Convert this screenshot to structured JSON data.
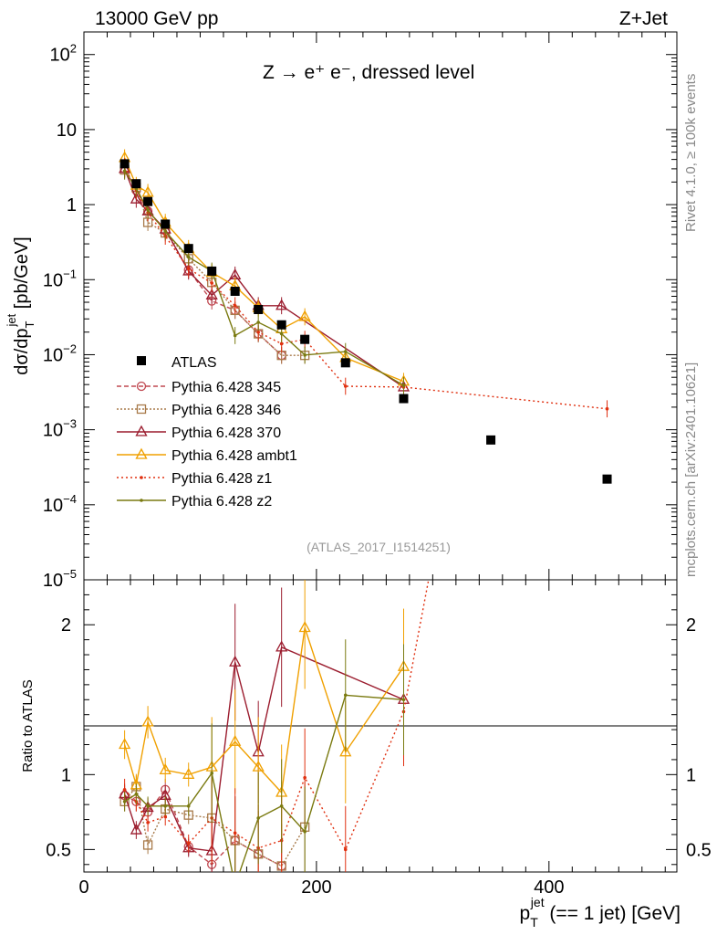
{
  "header": {
    "left": "13000 GeV pp",
    "right": "Z+Jet"
  },
  "title": "Z → e⁺ e⁻, dressed level",
  "watermark": "(ATLAS_2017_I1514251)",
  "side_text": {
    "rivet": "Rivet 4.1.0, ≥ 100k events",
    "mcplots": "mcplots.cern.ch [arXiv:2401.10621]"
  },
  "axes": {
    "ylabel_main": "dσ/dp",
    "ylabel_main_sub": "T",
    "ylabel_main_sup": "jet",
    "ylabel_main_unit": " [pb/GeV]",
    "ylabel_ratio": "Ratio to ATLAS",
    "xlabel_p": "p",
    "xlabel_sub": "T",
    "xlabel_sup": "jet",
    "xlabel_rest": " (== 1 jet) [GeV]"
  },
  "chart_data": {
    "type": "line",
    "title": "Z → e+ e-, dressed level",
    "xlabel": "p_T^jet (== 1 jet) [GeV]",
    "ylabel": "dσ/dp_T^jet [pb/GeV]",
    "ratio_ylabel": "Ratio to ATLAS",
    "xlim": [
      0,
      510
    ],
    "ylim": [
      1e-05,
      200
    ],
    "ratio_ylim": [
      0.35,
      2.3
    ],
    "yscale": "log",
    "x_ticks": [
      0,
      200,
      400
    ],
    "y_tick_labels": [
      {
        "mant": "10",
        "exp": "2"
      },
      {
        "mant": "10",
        "exp": ""
      },
      {
        "mant": "1",
        "exp": ""
      },
      {
        "mant": "10",
        "exp": "−1"
      },
      {
        "mant": "10",
        "exp": "−2"
      },
      {
        "mant": "10",
        "exp": "−3"
      },
      {
        "mant": "10",
        "exp": "−4"
      },
      {
        "mant": "10",
        "exp": "−5"
      }
    ],
    "ratio_ticks": [
      "0.5",
      "1",
      "2"
    ],
    "legend_position": "middle-left",
    "data": {
      "name": "ATLAS",
      "x": [
        35,
        45,
        55,
        70,
        90,
        110,
        130,
        150,
        170,
        190,
        225,
        275,
        350,
        450
      ],
      "y": [
        3.5,
        1.9,
        1.1,
        0.55,
        0.26,
        0.13,
        0.07,
        0.04,
        0.025,
        0.016,
        0.0078,
        0.0026,
        0.00073,
        0.00022
      ]
    },
    "series": [
      {
        "name": "Pythia 6.428 345",
        "color": "#c04850",
        "dash": "5,3",
        "marker": "circle",
        "x": [
          35,
          45,
          55,
          70,
          90,
          110,
          130,
          150,
          170
        ],
        "y": [
          3.0,
          1.55,
          0.82,
          0.45,
          0.135,
          0.052,
          0.039,
          0.019,
          0.0098
        ],
        "ratio": [
          0.86,
          0.82,
          0.75,
          0.9,
          0.52,
          0.4,
          0.56,
          0.47,
          0.39
        ]
      },
      {
        "name": "Pythia 6.428 346",
        "color": "#a87a4a",
        "dash": "2,2",
        "marker": "square",
        "x": [
          35,
          45,
          55,
          70,
          90,
          110,
          130,
          150,
          170,
          190
        ],
        "y": [
          2.9,
          1.7,
          0.58,
          0.42,
          0.19,
          0.092,
          0.039,
          0.019,
          0.0098,
          0.0098
        ],
        "ratio": [
          0.82,
          0.92,
          0.53,
          0.77,
          0.73,
          0.71,
          0.56,
          0.47,
          0.39,
          0.65
        ]
      },
      {
        "name": "Pythia 6.428 370",
        "color": "#9b1c2e",
        "dash": "",
        "marker": "triangle",
        "x": [
          35,
          45,
          55,
          70,
          90,
          110,
          130,
          150,
          170,
          275
        ],
        "y": [
          3.0,
          1.18,
          0.82,
          0.47,
          0.13,
          0.062,
          0.115,
          0.045,
          0.045,
          0.0037
        ],
        "ratio": [
          0.87,
          0.63,
          0.78,
          0.86,
          0.51,
          0.49,
          1.75,
          1.15,
          1.85,
          1.5
        ]
      },
      {
        "name": "Pythia 6.428 ambt1",
        "color": "#f0a000",
        "dash": "",
        "marker": "triangle",
        "x": [
          35,
          45,
          55,
          70,
          90,
          110,
          130,
          150,
          170,
          190,
          225,
          275
        ],
        "y": [
          4.2,
          1.8,
          1.45,
          0.58,
          0.26,
          0.125,
          0.082,
          0.042,
          0.022,
          0.032,
          0.0091,
          0.0044
        ],
        "ratio": [
          1.2,
          0.93,
          1.35,
          1.03,
          1.0,
          1.05,
          1.22,
          1.05,
          0.88,
          1.98,
          1.15,
          1.72
        ]
      },
      {
        "name": "Pythia 6.428 z1",
        "color": "#e03010",
        "dash": "2,3",
        "marker": "dot",
        "x": [
          35,
          45,
          55,
          70,
          90,
          110,
          130,
          150,
          170,
          190,
          225,
          275,
          450
        ],
        "y": [
          3.2,
          1.55,
          0.78,
          0.38,
          0.14,
          0.09,
          0.045,
          0.02,
          0.014,
          0.016,
          0.0038,
          0.0037,
          0.0019
        ],
        "ratio": [
          0.9,
          0.82,
          0.68,
          0.72,
          0.54,
          0.71,
          0.61,
          0.51,
          0.56,
          0.98,
          0.5,
          1.42,
          8.6
        ]
      },
      {
        "name": "Pythia 6.428 z2",
        "color": "#7a7a10",
        "dash": "",
        "marker": "dot",
        "x": [
          35,
          45,
          55,
          70,
          90,
          110,
          130,
          150,
          170,
          190,
          225,
          275
        ],
        "y": [
          2.8,
          1.65,
          0.85,
          0.44,
          0.2,
          0.13,
          0.018,
          0.027,
          0.019,
          0.0099,
          0.011,
          0.0039
        ],
        "ratio": [
          0.82,
          0.87,
          0.79,
          0.79,
          0.79,
          1.01,
          0.26,
          0.71,
          0.79,
          0.62,
          1.53,
          1.5
        ]
      }
    ]
  }
}
